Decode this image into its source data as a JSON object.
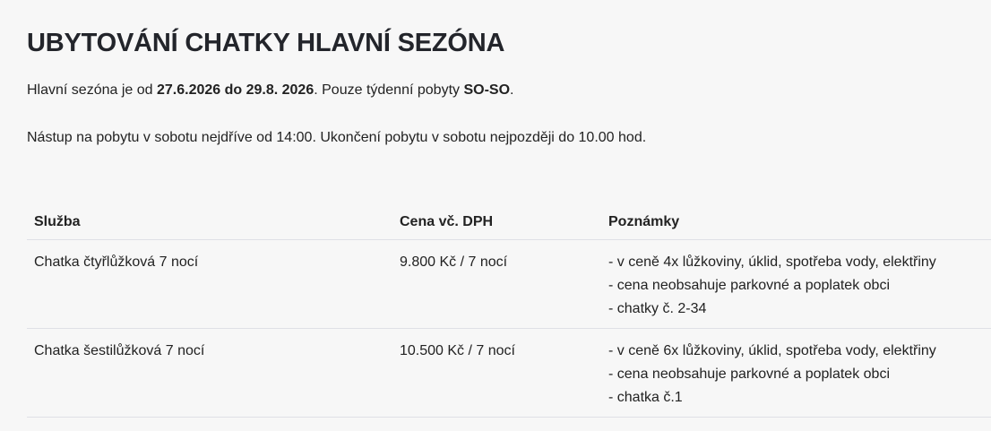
{
  "title": "UBYTOVÁNÍ CHATKY HLAVNÍ SEZÓNA",
  "intro": {
    "line1": {
      "prefix": "Hlavní sezóna je od ",
      "dates": "27.6.2026 do 29.8. 2026",
      "middle": ". Pouze týdenní pobyty ",
      "days": "SO-SO",
      "suffix": "."
    },
    "line2": "Nástup na pobytu v sobotu nejdříve od 14:00. Ukončení pobytu v sobotu nejpozději do 10.00 hod."
  },
  "table": {
    "headers": [
      "Služba",
      "Cena vč. DPH",
      "Poznámky"
    ],
    "rows": [
      {
        "service": "Chatka čtyřlůžková 7 nocí",
        "price": "9.800 Kč / 7 nocí",
        "notes": [
          "- v ceně 4x lůžkoviny, úklid, spotřeba vody, elektřiny",
          "- cena neobsahuje parkovné a poplatek obci",
          "- chatky č. 2-34"
        ]
      },
      {
        "service": "Chatka šestilůžková 7 nocí",
        "price": "10.500 Kč / 7 nocí",
        "notes": [
          "- v ceně 6x lůžkoviny, úklid, spotřeba vody, elektřiny",
          "- cena neobsahuje parkovné a poplatek obci",
          "- chatka č.1"
        ]
      }
    ]
  }
}
